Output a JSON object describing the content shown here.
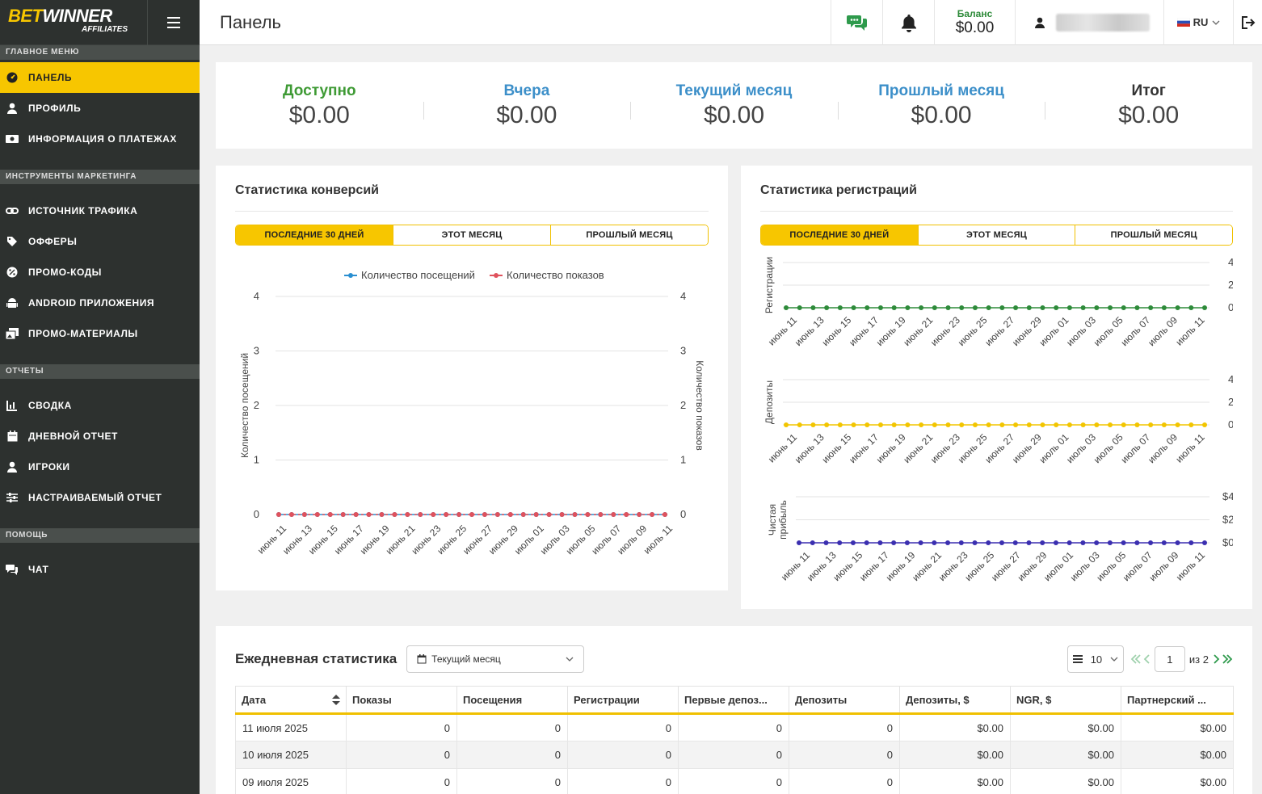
{
  "logo": {
    "line1_bet": "BET",
    "line1_winner": "WINNER",
    "line2": "AFFILIATES"
  },
  "header": {
    "title": "Панель",
    "balance_label": "Баланс",
    "balance_value": "$0.00",
    "lang": "RU"
  },
  "sidebar": {
    "sections": [
      {
        "label": "ГЛАВНОЕ МЕНЮ",
        "items": [
          {
            "label": "ПАНЕЛЬ",
            "icon": "dashboard-icon",
            "active": true
          },
          {
            "label": "ПРОФИЛЬ",
            "icon": "user-icon"
          },
          {
            "label": "ИНФОРМАЦИЯ О ПЛАТЕЖАХ",
            "icon": "money-icon"
          }
        ]
      },
      {
        "label": "ИНСТРУМЕНТЫ МАРКЕТИНГА",
        "items": [
          {
            "label": "ИСТОЧНИК ТРАФИКА",
            "icon": "link-icon"
          },
          {
            "label": "ОФФЕРЫ",
            "icon": "tag-icon"
          },
          {
            "label": "ПРОМО-КОДЫ",
            "icon": "percent-icon"
          },
          {
            "label": "ANDROID ПРИЛОЖЕНИЯ",
            "icon": "android-icon"
          },
          {
            "label": "ПРОМО-МАТЕРИАЛЫ",
            "icon": "images-icon"
          }
        ]
      },
      {
        "label": "ОТЧЕТЫ",
        "items": [
          {
            "label": "СВОДКА",
            "icon": "chart-icon"
          },
          {
            "label": "ДНЕВНОЙ ОТЧЕТ",
            "icon": "calendar-icon"
          },
          {
            "label": "ИГРОКИ",
            "icon": "user-icon"
          },
          {
            "label": "НАСТРАИВАЕМЫЙ ОТЧЕТ",
            "icon": "sliders-icon"
          }
        ]
      },
      {
        "label": "ПОМОЩЬ",
        "items": [
          {
            "label": "ЧАТ",
            "icon": "chat-icon"
          }
        ]
      }
    ]
  },
  "summary": [
    {
      "label": "Доступно",
      "value": "$0.00",
      "color": "#3e9a34"
    },
    {
      "label": "Вчера",
      "value": "$0.00",
      "color": "#3c8fc9"
    },
    {
      "label": "Текущий месяц",
      "value": "$0.00",
      "color": "#3c8fc9"
    },
    {
      "label": "Прошлый месяц",
      "value": "$0.00",
      "color": "#3c8fc9"
    },
    {
      "label": "Итог",
      "value": "$0.00",
      "color": "#333333"
    }
  ],
  "conversions": {
    "title": "Статистика конверсий",
    "tabs": [
      "ПОСЛЕДНИЕ 30 ДНЕЙ",
      "ЭТОТ МЕСЯЦ",
      "ПРОШЛЫЙ МЕСЯЦ"
    ]
  },
  "registrations": {
    "title": "Статистика регистраций",
    "tabs": [
      "ПОСЛЕДНИЕ 30 ДНЕЙ",
      "ЭТОТ МЕСЯЦ",
      "ПРОШЛЫЙ МЕСЯЦ"
    ]
  },
  "chart_data": [
    {
      "type": "line",
      "x_tick_labels": [
        "июнь 11",
        "июнь 13",
        "июнь 15",
        "июнь 17",
        "июнь 19",
        "июнь 21",
        "июнь 23",
        "июнь 25",
        "июнь 27",
        "июнь 29",
        "июль 01",
        "июль 03",
        "июль 05",
        "июль 07",
        "июль 09",
        "июль 11"
      ],
      "points_per_series": 31,
      "ylabel_left": "Количество посещений",
      "ylabel_right": "Количество показов",
      "ylim": [
        0,
        4
      ],
      "yticks": [
        0,
        1,
        2,
        3,
        4
      ],
      "legend_position": "top",
      "grid": true,
      "series": [
        {
          "name": "Количество посещений",
          "color": "#2a8fd1",
          "values": [
            0,
            0,
            0,
            0,
            0,
            0,
            0,
            0,
            0,
            0,
            0,
            0,
            0,
            0,
            0,
            0,
            0,
            0,
            0,
            0,
            0,
            0,
            0,
            0,
            0,
            0,
            0,
            0,
            0,
            0,
            0
          ]
        },
        {
          "name": "Количество показов",
          "color": "#e0525d",
          "values": [
            0,
            0,
            0,
            0,
            0,
            0,
            0,
            0,
            0,
            0,
            0,
            0,
            0,
            0,
            0,
            0,
            0,
            0,
            0,
            0,
            0,
            0,
            0,
            0,
            0,
            0,
            0,
            0,
            0,
            0,
            0
          ]
        }
      ]
    },
    {
      "type": "line",
      "x_tick_labels": [
        "июнь 11",
        "июнь 13",
        "июнь 15",
        "июнь 17",
        "июнь 19",
        "июнь 21",
        "июнь 23",
        "июнь 25",
        "июнь 27",
        "июнь 29",
        "июль 01",
        "июль 03",
        "июль 05",
        "июль 07",
        "июль 09",
        "июль 11"
      ],
      "ylabel": "Регистрации",
      "ylim": [
        0,
        4
      ],
      "yticks": [
        "0",
        "2",
        "4"
      ],
      "grid": true,
      "series": [
        {
          "color": "#2e8b3a",
          "values": [
            0,
            0,
            0,
            0,
            0,
            0,
            0,
            0,
            0,
            0,
            0,
            0,
            0,
            0,
            0,
            0,
            0,
            0,
            0,
            0,
            0,
            0,
            0,
            0,
            0,
            0,
            0,
            0,
            0,
            0,
            0,
            0
          ]
        }
      ]
    },
    {
      "type": "line",
      "x_tick_labels": [
        "июнь 11",
        "июнь 13",
        "июнь 15",
        "июнь 17",
        "июнь 19",
        "июнь 21",
        "июнь 23",
        "июнь 25",
        "июнь 27",
        "июнь 29",
        "июль 01",
        "июль 03",
        "июль 05",
        "июль 07",
        "июль 09",
        "июль 11"
      ],
      "ylabel": "Депозиты",
      "ylim": [
        0,
        4
      ],
      "yticks": [
        "0",
        "2",
        "4"
      ],
      "grid": true,
      "series": [
        {
          "color": "#f2c500",
          "values": [
            0,
            0,
            0,
            0,
            0,
            0,
            0,
            0,
            0,
            0,
            0,
            0,
            0,
            0,
            0,
            0,
            0,
            0,
            0,
            0,
            0,
            0,
            0,
            0,
            0,
            0,
            0,
            0,
            0,
            0,
            0,
            0
          ]
        }
      ]
    },
    {
      "type": "line",
      "x_tick_labels": [
        "июнь 11",
        "июнь 13",
        "июнь 15",
        "июнь 17",
        "июнь 19",
        "июнь 21",
        "июнь 23",
        "июнь 25",
        "июнь 27",
        "июнь 29",
        "июль 01",
        "июль 03",
        "июль 05",
        "июль 07",
        "июль 09",
        "июль 11"
      ],
      "ylabel": "Чистая прибыль",
      "ylim": [
        0,
        4
      ],
      "yticks": [
        "$0",
        "$2",
        "$4"
      ],
      "grid": true,
      "series": [
        {
          "color": "#3b2fb0",
          "values": [
            0,
            0,
            0,
            0,
            0,
            0,
            0,
            0,
            0,
            0,
            0,
            0,
            0,
            0,
            0,
            0,
            0,
            0,
            0,
            0,
            0,
            0,
            0,
            0,
            0,
            0,
            0,
            0,
            0,
            0,
            0
          ]
        }
      ]
    }
  ],
  "daily": {
    "title": "Ежедневная статистика",
    "period": "Текущий месяц",
    "per_page": "10",
    "page": "1",
    "of_pages": "из 2",
    "columns": [
      "Дата",
      "Показы",
      "Посещения",
      "Регистрации",
      "Первые депоз...",
      "Депозиты",
      "Депозиты, $",
      "NGR, $",
      "Партнерский ..."
    ],
    "rows": [
      [
        "11 июля 2025",
        "0",
        "0",
        "0",
        "0",
        "0",
        "$0.00",
        "$0.00",
        "$0.00"
      ],
      [
        "10 июля 2025",
        "0",
        "0",
        "0",
        "0",
        "0",
        "$0.00",
        "$0.00",
        "$0.00"
      ],
      [
        "09 июля 2025",
        "0",
        "0",
        "0",
        "0",
        "0",
        "$0.00",
        "$0.00",
        "$0.00"
      ]
    ]
  }
}
